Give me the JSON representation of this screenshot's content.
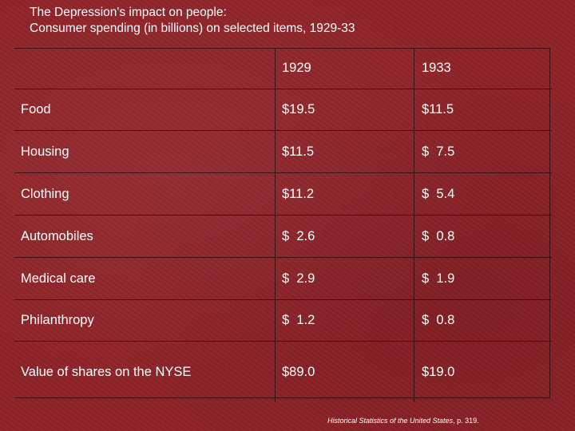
{
  "title": {
    "line1": "The Depression's impact on people:",
    "line2": "Consumer spending (in billions) on selected items, 1929-33"
  },
  "chart_data": {
    "type": "table",
    "title": "The Depression's impact on people: Consumer spending (in billions) on selected items, 1929-33",
    "columns": [
      "",
      "1929",
      "1933"
    ],
    "rows": [
      {
        "label": "Food",
        "y1929": "$19.5",
        "y1933": "$11.5"
      },
      {
        "label": "Housing",
        "y1929": "$11.5",
        "y1933": "$  7.5"
      },
      {
        "label": "Clothing",
        "y1929": "$11.2",
        "y1933": "$  5.4"
      },
      {
        "label": "Automobiles",
        "y1929": "$  2.6",
        "y1933": "$  0.8"
      },
      {
        "label": "Medical care",
        "y1929": "$  2.9",
        "y1933": "$  1.9"
      },
      {
        "label": "Philanthropy",
        "y1929": "$  1.2",
        "y1933": "$  0.8"
      },
      {
        "label": "Value of shares on the NYSE",
        "y1929": "$89.0",
        "y1933": "$19.0"
      }
    ],
    "unit": "billions of dollars"
  },
  "source": {
    "italic": "Historical Statistics of the United States",
    "rest": ", p. 319."
  }
}
